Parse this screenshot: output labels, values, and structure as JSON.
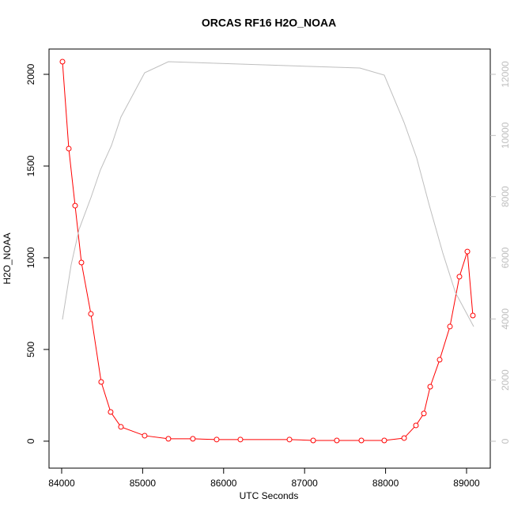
{
  "chart_data": {
    "type": "line",
    "title": "ORCAS RF16 H2O_NOAA",
    "xlabel": "UTC Seconds",
    "ylabel": "H2O_NOAA",
    "xlim": [
      83844,
      89293
    ],
    "xticks": [
      84000,
      85000,
      86000,
      87000,
      88000,
      89000
    ],
    "ylim": [
      -147,
      2138
    ],
    "yticks": [
      0,
      500,
      1000,
      1500,
      2000
    ],
    "y2lim": [
      -879,
      12827
    ],
    "y2ticks": [
      0,
      2000,
      4000,
      6000,
      8000,
      10000,
      12000
    ],
    "y2color": "#bebebe",
    "series": [
      {
        "color": "#ff0000",
        "markers": true,
        "x": [
          84010,
          84088,
          84166,
          84244,
          84361,
          84488,
          84605,
          84732,
          85025,
          85318,
          85620,
          85914,
          86207,
          86813,
          87106,
          87398,
          87701,
          87984,
          88229,
          88375,
          88473,
          88551,
          88668,
          88795,
          88912,
          89010,
          89078
        ],
        "values": [
          2069,
          1595,
          1284,
          974,
          694,
          323,
          159,
          78,
          30,
          13,
          13,
          9,
          9,
          9,
          4,
          4,
          4,
          4,
          17,
          86,
          151,
          297,
          444,
          625,
          897,
          1034,
          685
        ]
      },
      {
        "color": "#bebebe",
        "markers": false,
        "axis": "y2",
        "x": [
          84010,
          84117,
          84215,
          84361,
          84478,
          84615,
          84732,
          85025,
          85318,
          87682,
          87984,
          88229,
          88385,
          88541,
          88707,
          88863,
          89088
        ],
        "values": [
          3983,
          5767,
          6930,
          7965,
          8870,
          9672,
          10603,
          12051,
          12413,
          12206,
          11973,
          10422,
          9258,
          7707,
          6155,
          4862,
          3750
        ]
      }
    ]
  }
}
